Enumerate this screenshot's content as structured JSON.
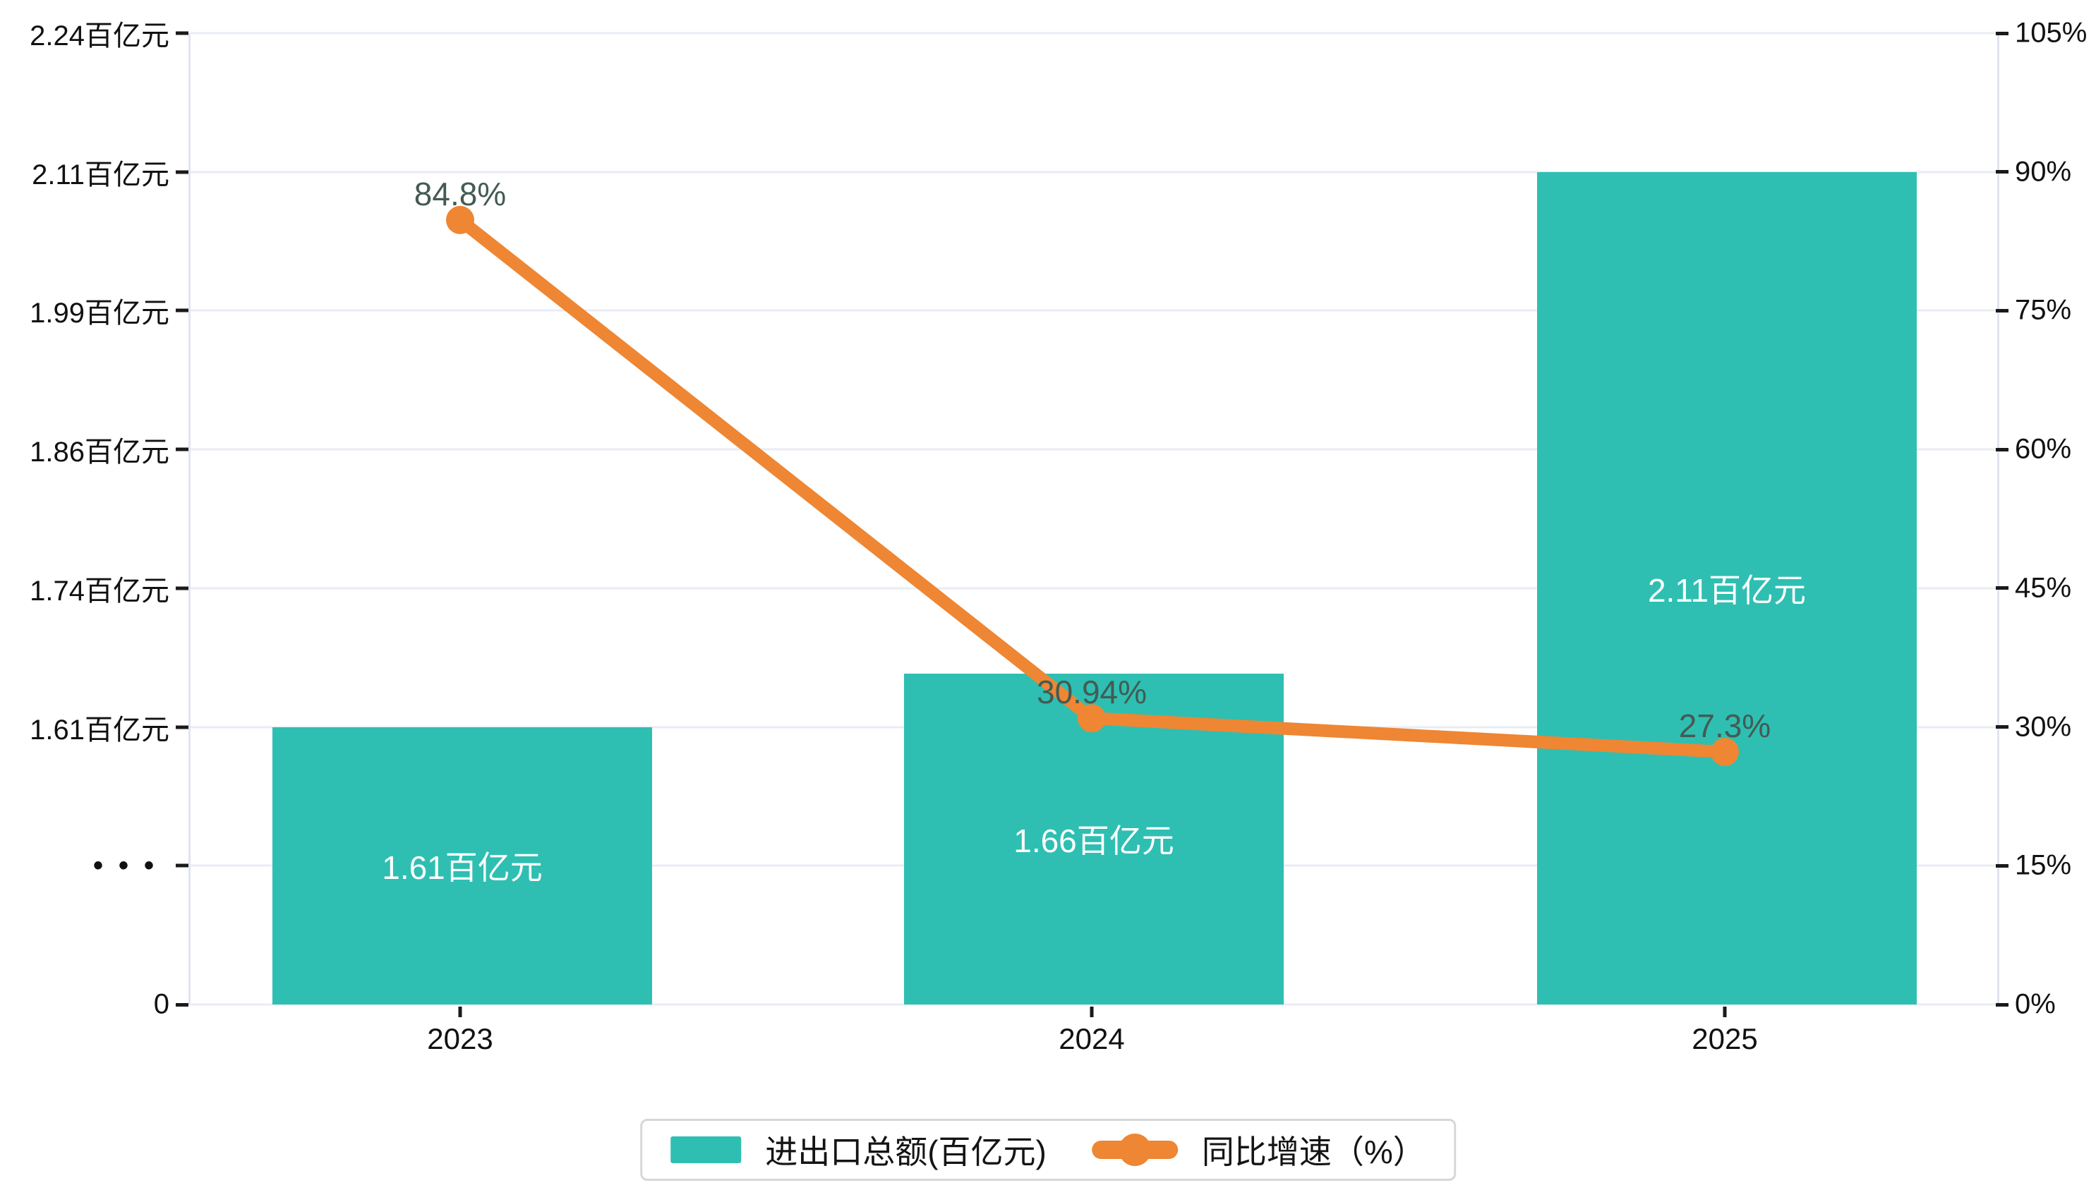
{
  "chart_data": {
    "type": "bar",
    "title": "",
    "categories": [
      "2023",
      "2024",
      "2025"
    ],
    "series": [
      {
        "name": "进出口总额(百亿元)",
        "type": "bar",
        "axis": "left",
        "unit": "百亿元",
        "values": [
          1.61,
          1.66,
          2.11
        ],
        "data_labels": [
          "1.61百亿元",
          "1.66百亿元",
          "2.11百亿元"
        ],
        "color": "#2ebfb2",
        "label_color": "#ffffff"
      },
      {
        "name": "同比增速（%）",
        "type": "line",
        "axis": "right",
        "unit": "%",
        "values": [
          84.8,
          30.94,
          27.3
        ],
        "data_labels": [
          "84.8%",
          "30.94%",
          "27.3%"
        ],
        "color": "#ee8633",
        "label_color": "#445b53"
      }
    ],
    "y_axis_left": {
      "tick_labels": [
        "2.24百亿元",
        "2.11百亿元",
        "1.99百亿元",
        "1.86百亿元",
        "1.74百亿元",
        "1.61百亿元",
        "•••",
        "0"
      ],
      "tick_values": [
        2.24,
        2.11,
        1.99,
        1.86,
        1.74,
        1.61,
        null,
        0
      ],
      "axis_break": true
    },
    "y_axis_right": {
      "tick_labels": [
        "105%",
        "90%",
        "75%",
        "60%",
        "45%",
        "30%",
        "15%",
        "0%"
      ],
      "min": 0,
      "max": 105
    },
    "grid": "horizontal",
    "legend_position": "bottom",
    "colors": {
      "bar": "#2ebfb2",
      "line": "#ee8633",
      "grid_line": "#e9ecf5",
      "axis_line": "#dfe4ef",
      "tick_mark": "#1a1a1a",
      "axis_text": "#111111",
      "point_label": "#445b53",
      "bar_label": "#ffffff",
      "legend_border": "#d7d7d7",
      "background": "#ffffff"
    }
  },
  "legend": {
    "items": [
      {
        "label": "进出口总额(百亿元)",
        "marker": "bar-swatch"
      },
      {
        "label": "同比增速（%）",
        "marker": "line-with-dot"
      }
    ]
  }
}
